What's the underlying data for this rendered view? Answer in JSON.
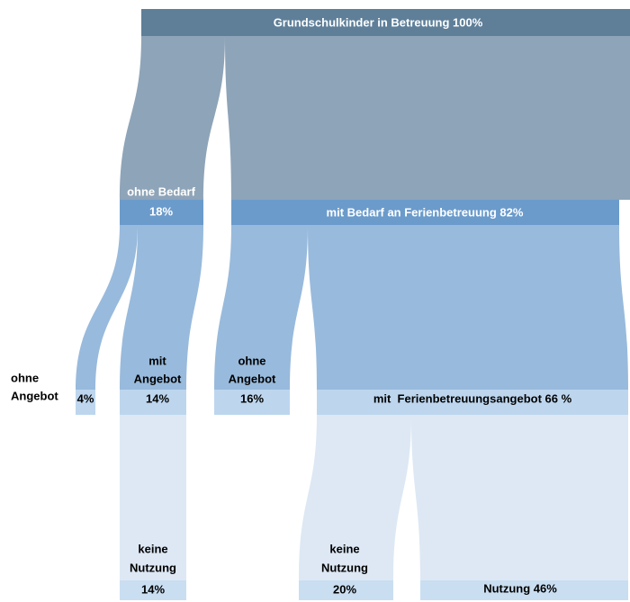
{
  "nodes": [
    {
      "lines": [
        "Grundschulkinder in Betreuung 100%"
      ]
    },
    {
      "lines": [
        "ohne Bedarf",
        "18%"
      ]
    },
    {
      "lines": [
        "mit Bedarf an Ferienbetreuung 82%"
      ]
    },
    {
      "lines": [
        "ohne",
        "Angebot",
        "4%"
      ]
    },
    {
      "lines": [
        "mit",
        "Angebot",
        "14%"
      ]
    },
    {
      "lines": [
        "ohne",
        "Angebot",
        "16%"
      ]
    },
    {
      "lines": [
        "mit  Ferienbetreuungsangebot 66 %"
      ]
    },
    {
      "lines": [
        "keine",
        "Nutzung",
        "14%"
      ]
    },
    {
      "lines": [
        "keine",
        "Nutzung",
        "20%"
      ]
    },
    {
      "lines": [
        "Nutzung 46%"
      ]
    }
  ]
}
